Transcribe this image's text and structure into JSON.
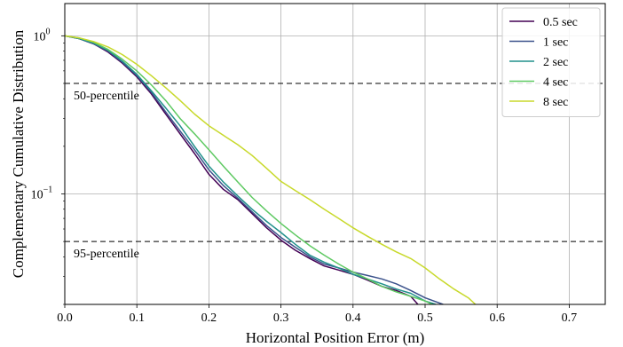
{
  "chart_data": {
    "type": "line",
    "xlabel": "Horizontal Position Error (m)",
    "ylabel": "Complementary Cumulative Distribution",
    "xlim": [
      0.0,
      0.75
    ],
    "ylim": [
      0.02,
      1.6
    ],
    "yscale": "log",
    "grid": true,
    "legend_position": "top-right",
    "x_ticks": [
      {
        "value": 0.0,
        "label": "0.0"
      },
      {
        "value": 0.1,
        "label": "0.1"
      },
      {
        "value": 0.2,
        "label": "0.2"
      },
      {
        "value": 0.3,
        "label": "0.3"
      },
      {
        "value": 0.4,
        "label": "0.4"
      },
      {
        "value": 0.5,
        "label": "0.5"
      },
      {
        "value": 0.6,
        "label": "0.6"
      },
      {
        "value": 0.7,
        "label": "0.7"
      }
    ],
    "y_ticks": [
      {
        "value": 1.0,
        "base": "10",
        "exp": "0"
      },
      {
        "value": 0.1,
        "base": "10",
        "exp": "−1"
      }
    ],
    "reference_lines": [
      {
        "y": 0.5,
        "label": "50-percentile",
        "style": "dashed"
      },
      {
        "y": 0.05,
        "label": "95-percentile",
        "style": "dashed"
      }
    ],
    "series": [
      {
        "name": "0.5 sec",
        "color": "#440154",
        "x": [
          0.0,
          0.02,
          0.04,
          0.06,
          0.08,
          0.1,
          0.12,
          0.14,
          0.16,
          0.18,
          0.2,
          0.22,
          0.24,
          0.26,
          0.28,
          0.3,
          0.32,
          0.34,
          0.36,
          0.38,
          0.4,
          0.42,
          0.44,
          0.46,
          0.48,
          0.49
        ],
        "y": [
          1.0,
          0.96,
          0.89,
          0.79,
          0.67,
          0.55,
          0.43,
          0.32,
          0.24,
          0.18,
          0.133,
          0.107,
          0.092,
          0.075,
          0.061,
          0.051,
          0.044,
          0.039,
          0.035,
          0.033,
          0.031,
          0.0285,
          0.026,
          0.0245,
          0.0225,
          0.02
        ]
      },
      {
        "name": "1 sec",
        "color": "#3b528b",
        "x": [
          0.0,
          0.02,
          0.04,
          0.06,
          0.08,
          0.1,
          0.12,
          0.14,
          0.16,
          0.18,
          0.2,
          0.22,
          0.24,
          0.26,
          0.28,
          0.3,
          0.32,
          0.34,
          0.36,
          0.38,
          0.4,
          0.42,
          0.44,
          0.46,
          0.48,
          0.5,
          0.525
        ],
        "y": [
          1.0,
          0.96,
          0.89,
          0.8,
          0.68,
          0.56,
          0.44,
          0.33,
          0.25,
          0.19,
          0.142,
          0.113,
          0.094,
          0.077,
          0.063,
          0.053,
          0.046,
          0.04,
          0.036,
          0.034,
          0.032,
          0.0305,
          0.029,
          0.027,
          0.0245,
          0.022,
          0.02
        ]
      },
      {
        "name": "2 sec",
        "color": "#21918c",
        "x": [
          0.0,
          0.02,
          0.04,
          0.06,
          0.08,
          0.1,
          0.12,
          0.14,
          0.16,
          0.18,
          0.2,
          0.22,
          0.24,
          0.26,
          0.28,
          0.3,
          0.32,
          0.34,
          0.36,
          0.38,
          0.4,
          0.42,
          0.44,
          0.46,
          0.48,
          0.5,
          0.515
        ],
        "y": [
          1.0,
          0.96,
          0.9,
          0.81,
          0.69,
          0.57,
          0.45,
          0.35,
          0.27,
          0.2,
          0.15,
          0.119,
          0.097,
          0.08,
          0.067,
          0.057,
          0.048,
          0.041,
          0.037,
          0.034,
          0.031,
          0.029,
          0.027,
          0.025,
          0.0235,
          0.021,
          0.02
        ]
      },
      {
        "name": "4 sec",
        "color": "#5ec962",
        "x": [
          0.0,
          0.02,
          0.04,
          0.06,
          0.08,
          0.1,
          0.12,
          0.14,
          0.16,
          0.18,
          0.2,
          0.22,
          0.24,
          0.26,
          0.28,
          0.3,
          0.32,
          0.34,
          0.36,
          0.38,
          0.4,
          0.42,
          0.44,
          0.46,
          0.48,
          0.5,
          0.51
        ],
        "y": [
          1.0,
          0.97,
          0.91,
          0.82,
          0.71,
          0.6,
          0.49,
          0.39,
          0.3,
          0.24,
          0.19,
          0.15,
          0.119,
          0.095,
          0.078,
          0.065,
          0.055,
          0.047,
          0.041,
          0.036,
          0.032,
          0.029,
          0.026,
          0.024,
          0.0225,
          0.021,
          0.02
        ]
      },
      {
        "name": "8 sec",
        "color": "#c8d92b",
        "x": [
          0.0,
          0.02,
          0.04,
          0.06,
          0.08,
          0.1,
          0.12,
          0.14,
          0.16,
          0.18,
          0.2,
          0.22,
          0.24,
          0.26,
          0.28,
          0.3,
          0.32,
          0.34,
          0.36,
          0.38,
          0.4,
          0.42,
          0.44,
          0.46,
          0.48,
          0.5,
          0.52,
          0.54,
          0.56,
          0.57
        ],
        "y": [
          1.0,
          0.97,
          0.92,
          0.85,
          0.76,
          0.66,
          0.56,
          0.47,
          0.39,
          0.32,
          0.27,
          0.235,
          0.205,
          0.175,
          0.145,
          0.12,
          0.105,
          0.092,
          0.08,
          0.07,
          0.061,
          0.054,
          0.048,
          0.043,
          0.039,
          0.034,
          0.029,
          0.025,
          0.022,
          0.02
        ]
      }
    ]
  }
}
